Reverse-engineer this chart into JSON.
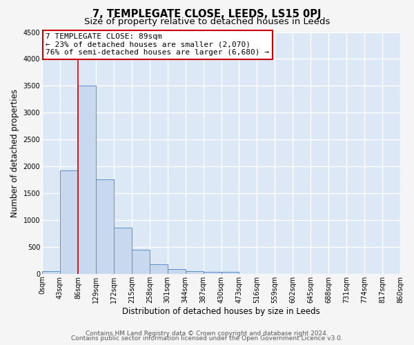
{
  "title": "7, TEMPLEGATE CLOSE, LEEDS, LS15 0PJ",
  "subtitle": "Size of property relative to detached houses in Leeds",
  "xlabel": "Distribution of detached houses by size in Leeds",
  "ylabel": "Number of detached properties",
  "bin_edges": [
    0,
    43,
    86,
    129,
    172,
    215,
    258,
    301,
    344,
    387,
    430,
    473,
    516,
    559,
    602,
    645,
    688,
    731,
    774,
    817,
    860
  ],
  "bin_labels": [
    "0sqm",
    "43sqm",
    "86sqm",
    "129sqm",
    "172sqm",
    "215sqm",
    "258sqm",
    "301sqm",
    "344sqm",
    "387sqm",
    "430sqm",
    "473sqm",
    "516sqm",
    "559sqm",
    "602sqm",
    "645sqm",
    "688sqm",
    "731sqm",
    "774sqm",
    "817sqm",
    "860sqm"
  ],
  "bar_heights": [
    50,
    1920,
    3500,
    1760,
    860,
    450,
    175,
    90,
    50,
    40,
    30,
    0,
    0,
    0,
    0,
    0,
    0,
    0,
    0,
    0
  ],
  "bar_color": "#c8d8ee",
  "bar_edge_color": "#5b8fc9",
  "red_line_x": 86,
  "annotation_title": "7 TEMPLEGATE CLOSE: 89sqm",
  "annotation_line1": "← 23% of detached houses are smaller (2,070)",
  "annotation_line2": "76% of semi-detached houses are larger (6,680) →",
  "annotation_box_color": "#ffffff",
  "annotation_box_edge_color": "#cc0000",
  "red_line_color": "#cc0000",
  "ylim": [
    0,
    4500
  ],
  "yticks": [
    0,
    500,
    1000,
    1500,
    2000,
    2500,
    3000,
    3500,
    4000,
    4500
  ],
  "footer1": "Contains HM Land Registry data © Crown copyright and database right 2024.",
  "footer2": "Contains public sector information licensed under the Open Government Licence v3.0.",
  "plot_bg_color": "#dce8f5",
  "fig_bg_color": "#f5f5f5",
  "grid_color": "#ffffff",
  "title_fontsize": 10.5,
  "subtitle_fontsize": 9.5,
  "axis_label_fontsize": 8.5,
  "tick_fontsize": 7,
  "annotation_fontsize": 8,
  "footer_fontsize": 6.5
}
